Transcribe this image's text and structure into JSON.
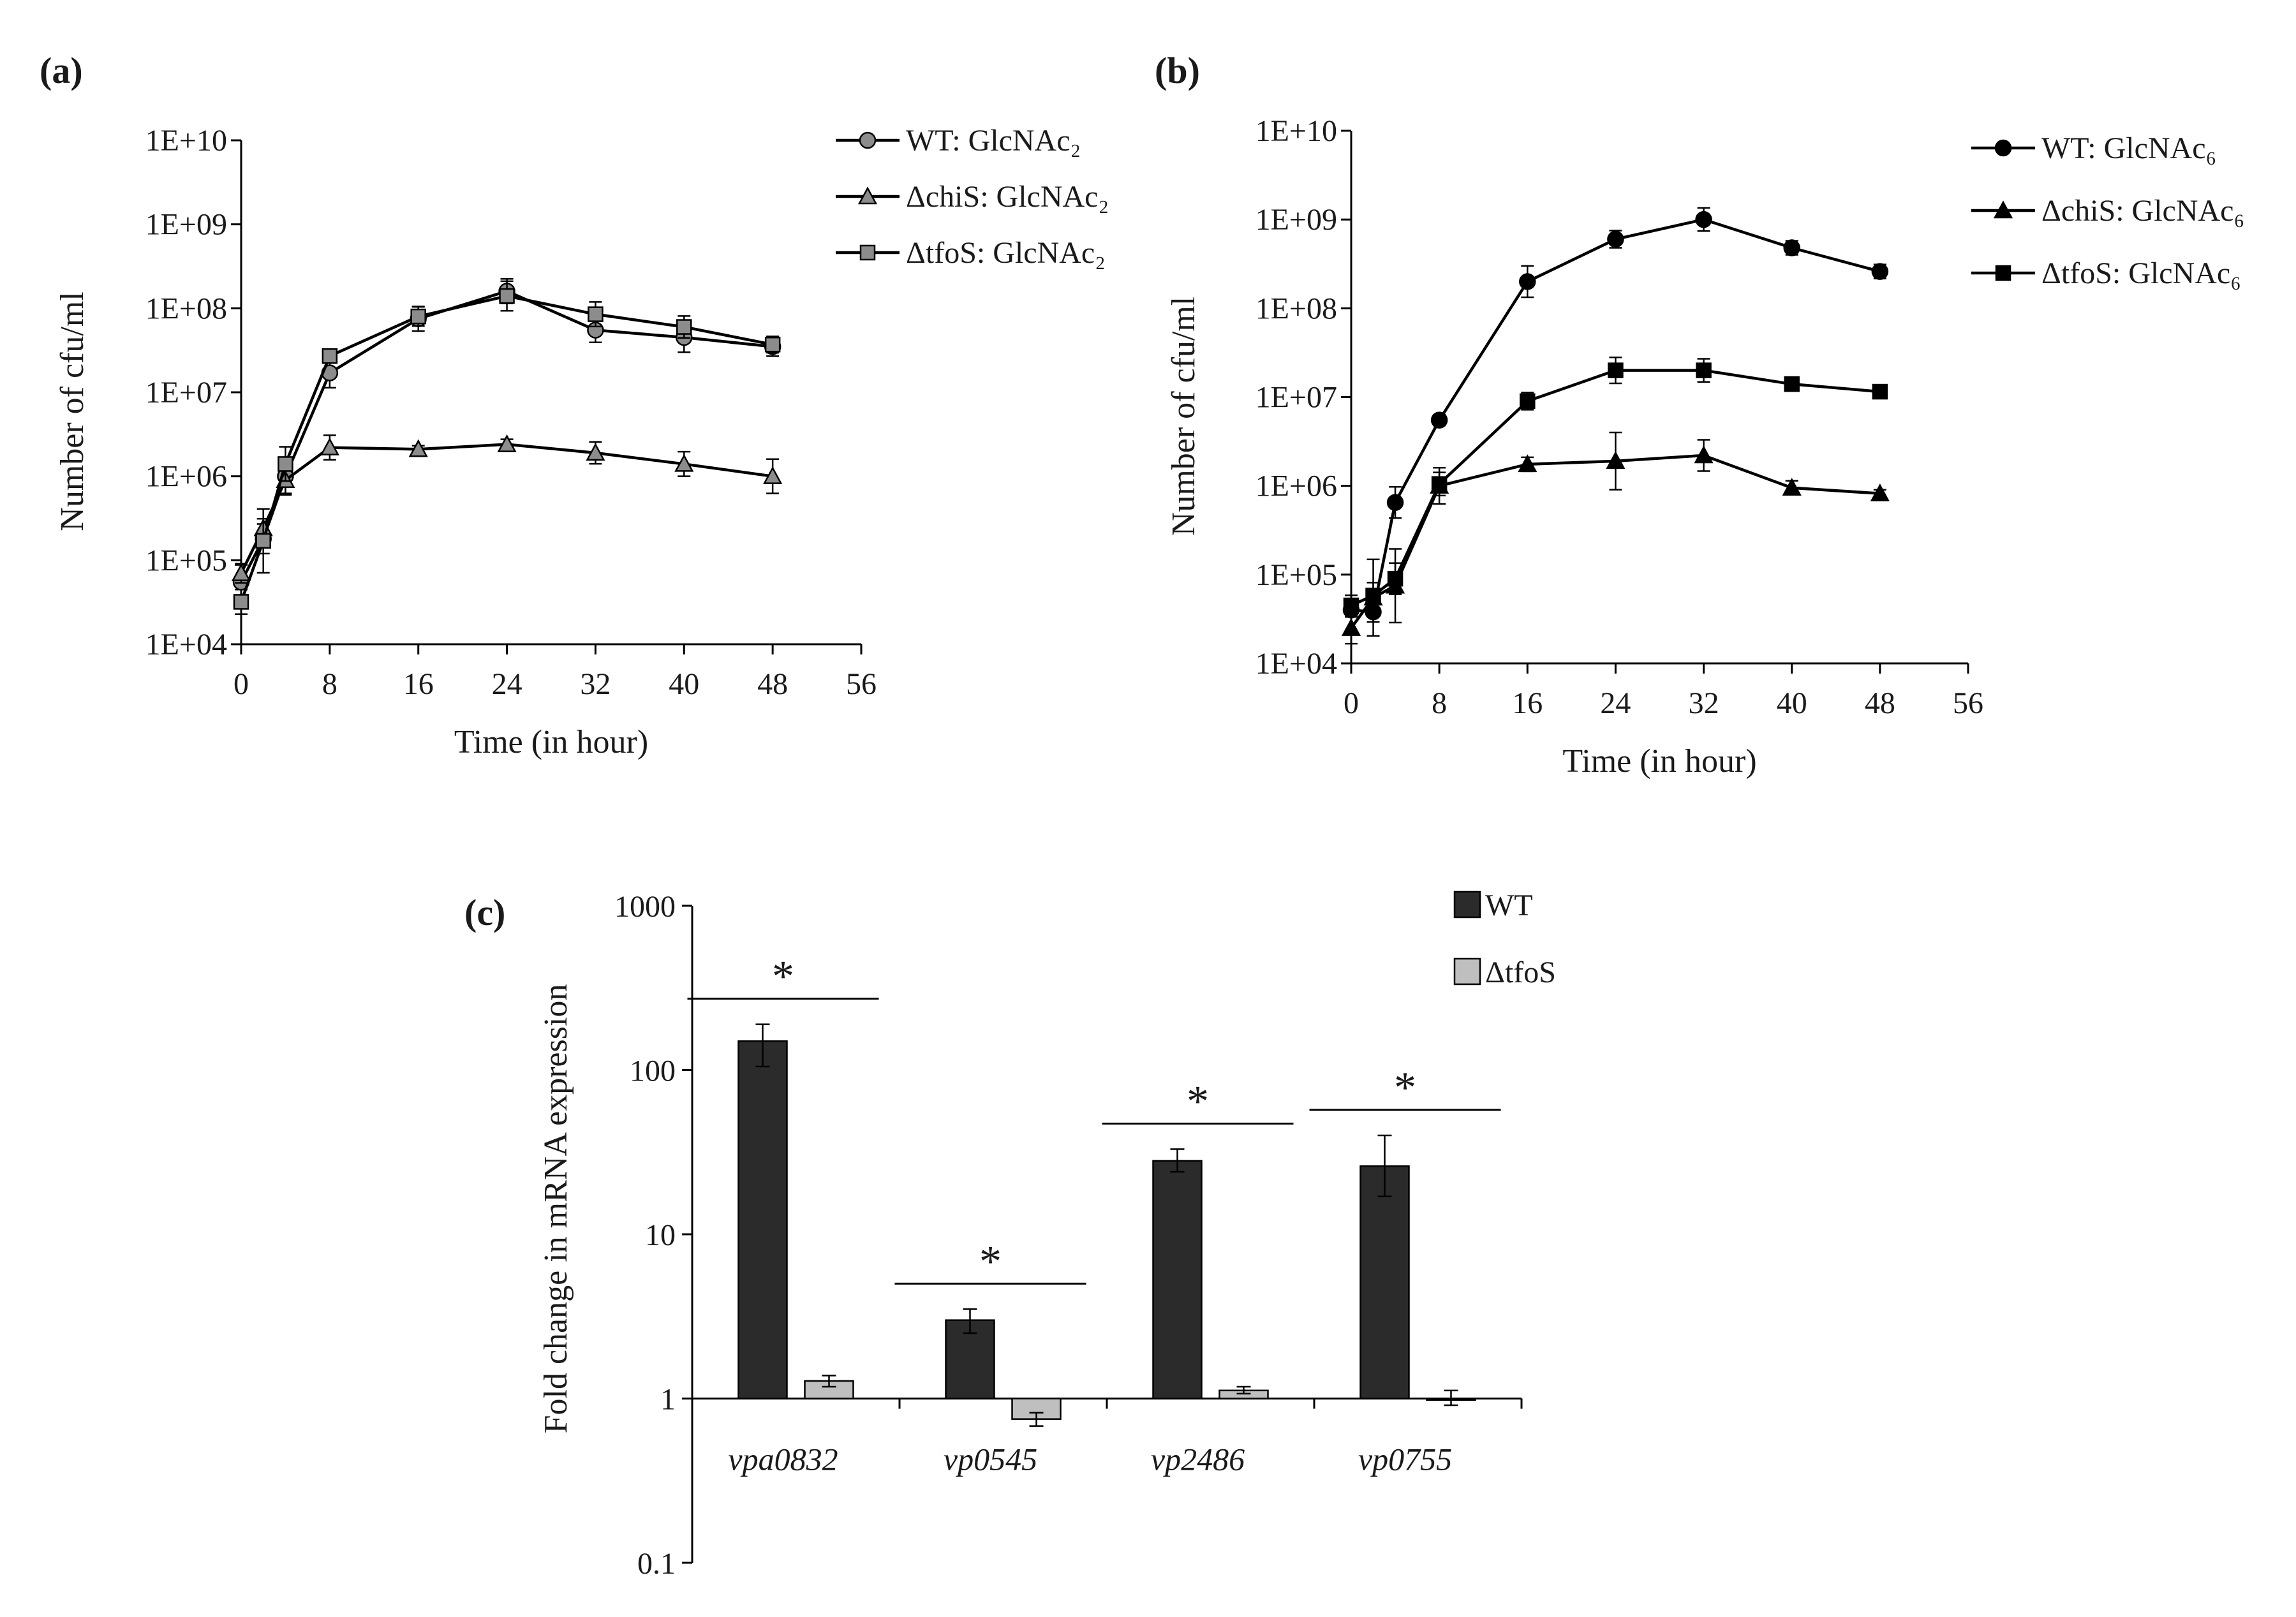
{
  "chart_data": [
    {
      "type": "line",
      "panel_label": "(a)",
      "xlabel": "Time  (in hour)",
      "ylabel": "Number  of  cfu/ml",
      "yscale": "log",
      "xlim": [
        0,
        56
      ],
      "ylim": [
        10000,
        10000000000
      ],
      "xticks": [
        "0",
        "8",
        "16",
        "24",
        "32",
        "40",
        "48",
        "56"
      ],
      "yticks": [
        "1E+04",
        "1E+05",
        "1E+06",
        "1E+07",
        "1E+08",
        "1E+09",
        "1E+10"
      ],
      "legend_position": "top-right",
      "series": [
        {
          "name": "WT: GlcNAc₂",
          "marker": "circle",
          "color": "#8c8c8c",
          "x": [
            0,
            2,
            4,
            8,
            16,
            24,
            32,
            40,
            48
          ],
          "y": [
            55000,
            180000,
            1000000,
            17000000,
            75000000,
            160000000,
            55000000,
            45000000,
            35000000
          ],
          "err_factor": [
            1.6,
            1.5,
            1.6,
            1.5,
            1.4,
            1.4,
            1.4,
            1.5,
            1.3
          ]
        },
        {
          "name": "ΔchiS: GlcNAc₂",
          "marker": "triangle",
          "color": "#8c8c8c",
          "x": [
            0,
            2,
            4,
            8,
            16,
            24,
            32,
            40,
            48
          ],
          "y": [
            70000,
            240000,
            900000,
            2200000,
            2100000,
            2400000,
            1900000,
            1400000,
            1000000
          ],
          "err_factor": [
            1.3,
            1.3,
            1.5,
            1.4,
            1.1,
            1.15,
            1.35,
            1.4,
            1.6
          ]
        },
        {
          "name": "ΔtfoS: GlcNAc₂",
          "marker": "square",
          "color": "#8c8c8c",
          "x": [
            0,
            2,
            4,
            8,
            16,
            24,
            32,
            40,
            48
          ],
          "y": [
            32000,
            170000,
            1400000,
            27000000,
            80000000,
            140000000,
            85000000,
            60000000,
            37000000
          ],
          "err_factor": [
            1.4,
            2.4,
            1.6,
            1.15,
            1.3,
            1.5,
            1.4,
            1.35,
            1.25
          ]
        }
      ]
    },
    {
      "type": "line",
      "panel_label": "(b)",
      "xlabel": "Time  (in hour)",
      "ylabel": "Number  of  cfu/ml",
      "yscale": "log",
      "xlim": [
        0,
        56
      ],
      "ylim": [
        10000,
        10000000000
      ],
      "xticks": [
        "0",
        "8",
        "16",
        "24",
        "32",
        "40",
        "48",
        "56"
      ],
      "yticks": [
        "1E+04",
        "1E+05",
        "1E+06",
        "1E+07",
        "1E+08",
        "1E+09",
        "1E+10"
      ],
      "legend_position": "top-right",
      "series": [
        {
          "name": "WT: GlcNAc₆",
          "marker": "circle",
          "color": "#000000",
          "x": [
            0,
            2,
            4,
            8,
            16,
            24,
            32,
            40,
            48
          ],
          "y": [
            40000,
            38000,
            650000,
            5500000,
            200000000,
            600000000,
            1000000000,
            480000000,
            260000000
          ],
          "err_factor": [
            1.2,
            1.3,
            1.5,
            1.15,
            1.5,
            1.25,
            1.35,
            1.2,
            1.2
          ]
        },
        {
          "name": "ΔchiS: GlcNAc₆",
          "marker": "triangle",
          "color": "#000000",
          "x": [
            0,
            2,
            4,
            8,
            16,
            24,
            32,
            40,
            48
          ],
          "y": [
            25000,
            55000,
            75000,
            1000000,
            1750000,
            1900000,
            2200000,
            950000,
            820000
          ],
          "err_factor": [
            1.5,
            2.7,
            2.6,
            1.6,
            1.2,
            2.1,
            1.5,
            1.2,
            1.1
          ]
        },
        {
          "name": "ΔtfoS: GlcNAc₆",
          "marker": "square",
          "color": "#000000",
          "x": [
            0,
            2,
            4,
            8,
            16,
            24,
            32,
            40,
            48
          ],
          "y": [
            45000,
            58000,
            90000,
            1050000,
            9000000,
            20000000,
            20000000,
            14000000,
            11500000
          ],
          "err_factor": [
            1.3,
            1.4,
            1.5,
            1.35,
            1.25,
            1.4,
            1.35,
            1.2,
            1.1
          ]
        }
      ]
    },
    {
      "type": "bar",
      "panel_label": "(c)",
      "xlabel": "",
      "ylabel": "Fold change in mRNA expression",
      "yscale": "log",
      "ylim": [
        0.1,
        1000
      ],
      "baseline": 1,
      "yticks": [
        "0.1",
        "1",
        "10",
        "100",
        "1000"
      ],
      "categories": [
        "vpa0832",
        "vp0545",
        "vp2486",
        "vp0755"
      ],
      "significance": [
        "*",
        "*",
        "*",
        "*"
      ],
      "legend_position": "top-right",
      "series": [
        {
          "name": "WT",
          "color": "#2b2b2b",
          "values": [
            150,
            3.0,
            28,
            26
          ],
          "err_low": [
            105,
            2.5,
            24,
            17
          ],
          "err_high": [
            190,
            3.5,
            33,
            40
          ]
        },
        {
          "name": "ΔtfoS",
          "color": "#bfbfbf",
          "values": [
            1.28,
            0.75,
            1.12,
            0.98
          ],
          "err_low": [
            1.18,
            0.68,
            1.07,
            0.91
          ],
          "err_high": [
            1.38,
            0.82,
            1.18,
            1.12
          ]
        }
      ]
    }
  ]
}
